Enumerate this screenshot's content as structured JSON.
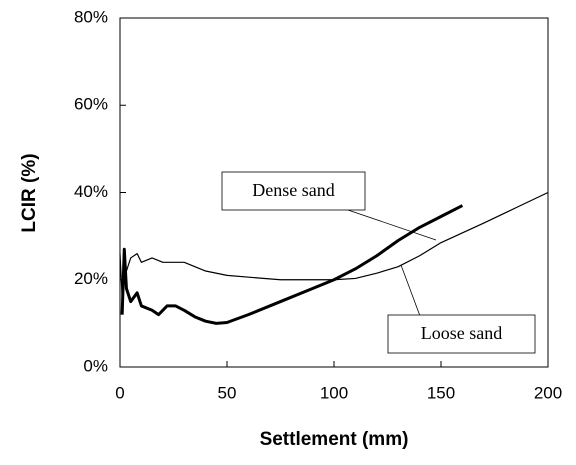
{
  "chart_data": {
    "type": "line",
    "xlabel": "Settlement (mm)",
    "ylabel": "LCIR (%)",
    "xlim": [
      0,
      200
    ],
    "xticks": [
      0,
      50,
      100,
      150,
      200
    ],
    "ylim": [
      0,
      80
    ],
    "yticks": [
      {
        "value": 0,
        "label": "0%"
      },
      {
        "value": 20,
        "label": "20%"
      },
      {
        "value": 40,
        "label": "40%"
      },
      {
        "value": 60,
        "label": "60%"
      },
      {
        "value": 80,
        "label": "80%"
      }
    ],
    "grid": false,
    "series": [
      {
        "name": "Dense sand",
        "color": "#000000",
        "width": 3,
        "x": [
          1,
          2,
          3,
          5,
          8,
          10,
          15,
          18,
          22,
          26,
          30,
          35,
          40,
          45,
          50,
          60,
          75,
          90,
          100,
          110,
          120,
          130,
          140,
          150,
          160
        ],
        "values": [
          12,
          27,
          18,
          15,
          17,
          14,
          13,
          12,
          14,
          14,
          13,
          11.5,
          10.5,
          10,
          10.2,
          12,
          15,
          18,
          20,
          22.5,
          25.5,
          29,
          32,
          34.5,
          37
        ]
      },
      {
        "name": "Loose sand",
        "color": "#000000",
        "width": 1.2,
        "x": [
          0,
          1,
          2,
          3,
          5,
          8,
          10,
          15,
          20,
          30,
          40,
          50,
          75,
          100,
          110,
          120,
          130,
          140,
          150,
          170,
          185,
          200
        ],
        "values": [
          26,
          16,
          26,
          22,
          25,
          26,
          24,
          25,
          24,
          24,
          22,
          21,
          20,
          20,
          20.3,
          21.5,
          23,
          25.5,
          28.5,
          33,
          36.5,
          40
        ]
      }
    ]
  }
}
